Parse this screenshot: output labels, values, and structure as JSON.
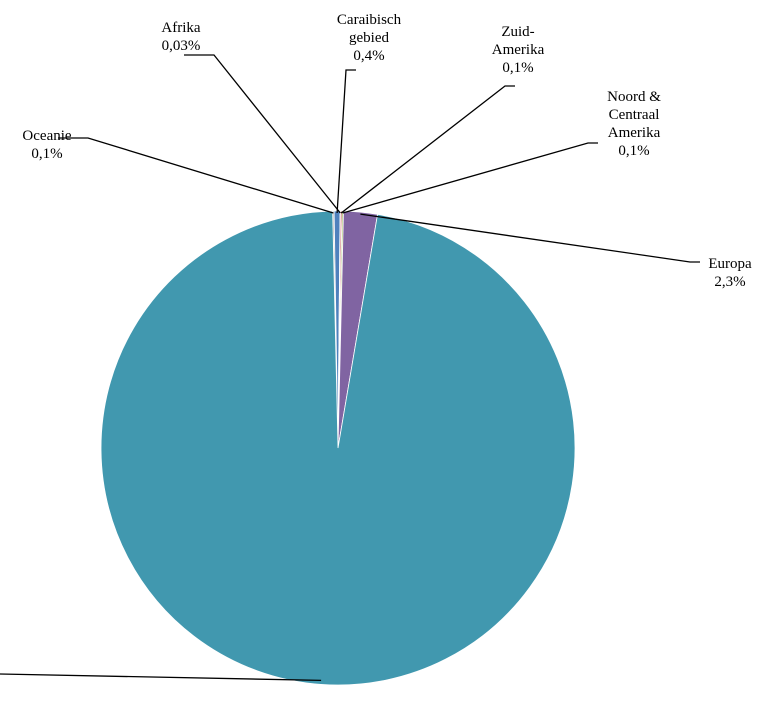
{
  "chart_data": {
    "type": "pie",
    "slices": [
      {
        "key": "oceanie",
        "label_lines": [
          "Oceanie"
        ],
        "percent_text": "0,1%",
        "value": 0.1,
        "color": "#A6A6A6"
      },
      {
        "key": "caraibisch",
        "label_lines": [
          "Caraibisch",
          "gebied"
        ],
        "percent_text": "0,4%",
        "value": 0.4,
        "color": "#4F81BD"
      },
      {
        "key": "afrika",
        "label_lines": [
          "Afrika"
        ],
        "percent_text": "0,03%",
        "value": 0.03,
        "color": "#C0504D"
      },
      {
        "key": "zuid_amerika",
        "label_lines": [
          "Zuid-",
          "Amerika"
        ],
        "percent_text": "0,1%",
        "value": 0.1,
        "color": "#C0504D"
      },
      {
        "key": "noord_centraal_amerika",
        "label_lines": [
          "Noord &",
          "Centraal",
          "Amerika"
        ],
        "percent_text": "0,1%",
        "value": 0.1,
        "color": "#9BBB59"
      },
      {
        "key": "europa",
        "label_lines": [
          "Europa"
        ],
        "percent_text": "2,3%",
        "value": 2.3,
        "color": "#8064A2"
      },
      {
        "key": "main",
        "label_lines": [],
        "percent_text": "",
        "value": 96.97,
        "color": "#4198AF"
      }
    ]
  }
}
